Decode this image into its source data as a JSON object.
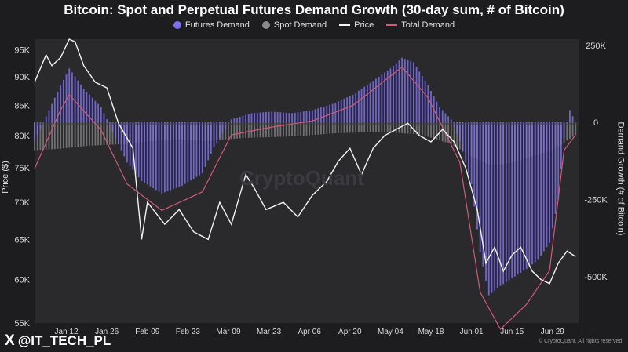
{
  "chart_data": {
    "type": "bar",
    "title": "Bitcoin: Spot and Perpetual Futures Demand Growth (30-day sum, # of Bitcoin)",
    "legend_placement": "top",
    "ylabel_left": "Price ($)",
    "ylabel_right": "Demand Growth (# of Bitcoin)",
    "y_left_ticks": [
      "95K",
      "90K",
      "85K",
      "80K",
      "75K",
      "70K",
      "65K",
      "60K",
      "55K"
    ],
    "y_left_range": [
      55000,
      97000
    ],
    "y_left_scale": "log",
    "y_right_ticks": [
      "250K",
      "0",
      "-250K",
      "-500K"
    ],
    "y_right_range": [
      -650000,
      270000
    ],
    "x_range": [
      "2025-01-01",
      "2025-07-08"
    ],
    "x_ticks": [
      {
        "date": "2025-01-12",
        "label": "Jan 12"
      },
      {
        "date": "2025-01-26",
        "label": "Jan 26"
      },
      {
        "date": "2025-02-09",
        "label": "Feb 09"
      },
      {
        "date": "2025-02-23",
        "label": "Feb 23"
      },
      {
        "date": "2025-03-09",
        "label": "Mar 09"
      },
      {
        "date": "2025-03-23",
        "label": "Mar 23"
      },
      {
        "date": "2025-04-06",
        "label": "Apr 06"
      },
      {
        "date": "2025-04-20",
        "label": "Apr 20"
      },
      {
        "date": "2025-05-04",
        "label": "May 04"
      },
      {
        "date": "2025-05-18",
        "label": "May 18"
      },
      {
        "date": "2025-06-01",
        "label": "Jun 01"
      },
      {
        "date": "2025-06-15",
        "label": "Jun 15"
      },
      {
        "date": "2025-06-29",
        "label": "Jun 29"
      }
    ],
    "series": [
      {
        "name": "Futures Demand",
        "color": "#7b6ff0",
        "axis": "right",
        "type": "bar",
        "points": [
          {
            "x": "2025-01-01",
            "y": -60000
          },
          {
            "x": "2025-01-05",
            "y": 20000
          },
          {
            "x": "2025-01-10",
            "y": 120000
          },
          {
            "x": "2025-01-13",
            "y": 175000
          },
          {
            "x": "2025-01-18",
            "y": 110000
          },
          {
            "x": "2025-01-24",
            "y": 50000
          },
          {
            "x": "2025-01-29",
            "y": -50000
          },
          {
            "x": "2025-02-02",
            "y": -130000
          },
          {
            "x": "2025-02-07",
            "y": -190000
          },
          {
            "x": "2025-02-14",
            "y": -230000
          },
          {
            "x": "2025-02-21",
            "y": -205000
          },
          {
            "x": "2025-02-28",
            "y": -165000
          },
          {
            "x": "2025-03-04",
            "y": -80000
          },
          {
            "x": "2025-03-10",
            "y": 10000
          },
          {
            "x": "2025-03-17",
            "y": 30000
          },
          {
            "x": "2025-03-24",
            "y": 35000
          },
          {
            "x": "2025-03-31",
            "y": 30000
          },
          {
            "x": "2025-04-07",
            "y": 40000
          },
          {
            "x": "2025-04-14",
            "y": 60000
          },
          {
            "x": "2025-04-21",
            "y": 90000
          },
          {
            "x": "2025-04-28",
            "y": 135000
          },
          {
            "x": "2025-05-04",
            "y": 175000
          },
          {
            "x": "2025-05-08",
            "y": 210000
          },
          {
            "x": "2025-05-12",
            "y": 195000
          },
          {
            "x": "2025-05-17",
            "y": 120000
          },
          {
            "x": "2025-05-21",
            "y": 50000
          },
          {
            "x": "2025-05-25",
            "y": 10000
          },
          {
            "x": "2025-05-28",
            "y": -60000
          },
          {
            "x": "2025-06-01",
            "y": -200000
          },
          {
            "x": "2025-06-04",
            "y": -420000
          },
          {
            "x": "2025-06-07",
            "y": -560000
          },
          {
            "x": "2025-06-11",
            "y": -530000
          },
          {
            "x": "2025-06-15",
            "y": -505000
          },
          {
            "x": "2025-06-20",
            "y": -475000
          },
          {
            "x": "2025-06-24",
            "y": -445000
          },
          {
            "x": "2025-06-28",
            "y": -390000
          },
          {
            "x": "2025-07-01",
            "y": -250000
          },
          {
            "x": "2025-07-03",
            "y": -50000
          },
          {
            "x": "2025-07-05",
            "y": 40000
          },
          {
            "x": "2025-07-07",
            "y": 0
          }
        ]
      },
      {
        "name": "Spot Demand",
        "color": "#8a8a8a",
        "axis": "right",
        "type": "bar",
        "points": [
          {
            "x": "2025-01-01",
            "y": -90000
          },
          {
            "x": "2025-01-10",
            "y": -85000
          },
          {
            "x": "2025-01-20",
            "y": -75000
          },
          {
            "x": "2025-02-01",
            "y": -70000
          },
          {
            "x": "2025-02-10",
            "y": -60000
          },
          {
            "x": "2025-02-20",
            "y": -55000
          },
          {
            "x": "2025-03-01",
            "y": -60000
          },
          {
            "x": "2025-03-15",
            "y": -50000
          },
          {
            "x": "2025-04-01",
            "y": -45000
          },
          {
            "x": "2025-04-15",
            "y": -35000
          },
          {
            "x": "2025-05-01",
            "y": -30000
          },
          {
            "x": "2025-05-15",
            "y": -40000
          },
          {
            "x": "2025-05-25",
            "y": -70000
          },
          {
            "x": "2025-06-01",
            "y": -110000
          },
          {
            "x": "2025-06-08",
            "y": -140000
          },
          {
            "x": "2025-06-15",
            "y": -130000
          },
          {
            "x": "2025-06-22",
            "y": -110000
          },
          {
            "x": "2025-06-29",
            "y": -90000
          },
          {
            "x": "2025-07-07",
            "y": -40000
          }
        ]
      },
      {
        "name": "Price",
        "color": "#f2f2f2",
        "axis": "left",
        "type": "line",
        "points": [
          {
            "x": "2025-01-01",
            "y": 89000
          },
          {
            "x": "2025-01-05",
            "y": 94000
          },
          {
            "x": "2025-01-07",
            "y": 92000
          },
          {
            "x": "2025-01-10",
            "y": 93500
          },
          {
            "x": "2025-01-13",
            "y": 97000
          },
          {
            "x": "2025-01-15",
            "y": 96500
          },
          {
            "x": "2025-01-18",
            "y": 92000
          },
          {
            "x": "2025-01-22",
            "y": 89000
          },
          {
            "x": "2025-01-26",
            "y": 88000
          },
          {
            "x": "2025-01-30",
            "y": 82000
          },
          {
            "x": "2025-02-04",
            "y": 78000
          },
          {
            "x": "2025-02-07",
            "y": 65000
          },
          {
            "x": "2025-02-09",
            "y": 70000
          },
          {
            "x": "2025-02-15",
            "y": 67000
          },
          {
            "x": "2025-02-20",
            "y": 69000
          },
          {
            "x": "2025-02-25",
            "y": 66000
          },
          {
            "x": "2025-03-02",
            "y": 65000
          },
          {
            "x": "2025-03-06",
            "y": 70000
          },
          {
            "x": "2025-03-10",
            "y": 67000
          },
          {
            "x": "2025-03-15",
            "y": 74000
          },
          {
            "x": "2025-03-18",
            "y": 72000
          },
          {
            "x": "2025-03-22",
            "y": 69000
          },
          {
            "x": "2025-03-28",
            "y": 70000
          },
          {
            "x": "2025-04-02",
            "y": 68000
          },
          {
            "x": "2025-04-07",
            "y": 71000
          },
          {
            "x": "2025-04-12",
            "y": 73000
          },
          {
            "x": "2025-04-16",
            "y": 76000
          },
          {
            "x": "2025-04-20",
            "y": 78000
          },
          {
            "x": "2025-04-24",
            "y": 74000
          },
          {
            "x": "2025-04-28",
            "y": 78000
          },
          {
            "x": "2025-05-02",
            "y": 80000
          },
          {
            "x": "2025-05-06",
            "y": 81000
          },
          {
            "x": "2025-05-10",
            "y": 82000
          },
          {
            "x": "2025-05-14",
            "y": 80000
          },
          {
            "x": "2025-05-18",
            "y": 79000
          },
          {
            "x": "2025-05-22",
            "y": 81000
          },
          {
            "x": "2025-05-26",
            "y": 79000
          },
          {
            "x": "2025-05-30",
            "y": 75000
          },
          {
            "x": "2025-06-03",
            "y": 69000
          },
          {
            "x": "2025-06-06",
            "y": 62000
          },
          {
            "x": "2025-06-09",
            "y": 64000
          },
          {
            "x": "2025-06-12",
            "y": 61000
          },
          {
            "x": "2025-06-15",
            "y": 63000
          },
          {
            "x": "2025-06-18",
            "y": 64000
          },
          {
            "x": "2025-06-22",
            "y": 61000
          },
          {
            "x": "2025-06-25",
            "y": 60000
          },
          {
            "x": "2025-06-28",
            "y": 59500
          },
          {
            "x": "2025-07-01",
            "y": 62000
          },
          {
            "x": "2025-07-04",
            "y": 63500
          },
          {
            "x": "2025-07-07",
            "y": 62800
          }
        ]
      },
      {
        "name": "Total Demand",
        "color": "#d05a78",
        "axis": "right",
        "type": "line",
        "points": [
          {
            "x": "2025-01-01",
            "y": -150000
          },
          {
            "x": "2025-01-10",
            "y": 40000
          },
          {
            "x": "2025-01-13",
            "y": 90000
          },
          {
            "x": "2025-01-24",
            "y": -25000
          },
          {
            "x": "2025-02-02",
            "y": -200000
          },
          {
            "x": "2025-02-14",
            "y": -285000
          },
          {
            "x": "2025-02-28",
            "y": -225000
          },
          {
            "x": "2025-03-10",
            "y": -40000
          },
          {
            "x": "2025-03-24",
            "y": -15000
          },
          {
            "x": "2025-04-07",
            "y": 5000
          },
          {
            "x": "2025-04-21",
            "y": 55000
          },
          {
            "x": "2025-05-08",
            "y": 180000
          },
          {
            "x": "2025-05-17",
            "y": 80000
          },
          {
            "x": "2025-05-28",
            "y": -130000
          },
          {
            "x": "2025-06-04",
            "y": -550000
          },
          {
            "x": "2025-06-11",
            "y": -670000
          },
          {
            "x": "2025-06-20",
            "y": -590000
          },
          {
            "x": "2025-06-28",
            "y": -480000
          },
          {
            "x": "2025-07-03",
            "y": -90000
          },
          {
            "x": "2025-07-07",
            "y": -40000
          }
        ]
      }
    ]
  },
  "watermark": "CryptoQuant",
  "footer": {
    "x_logo": "X",
    "handle": "@IT_TECH_PL",
    "copyright": "© CryptoQuant. All rights reserved"
  }
}
